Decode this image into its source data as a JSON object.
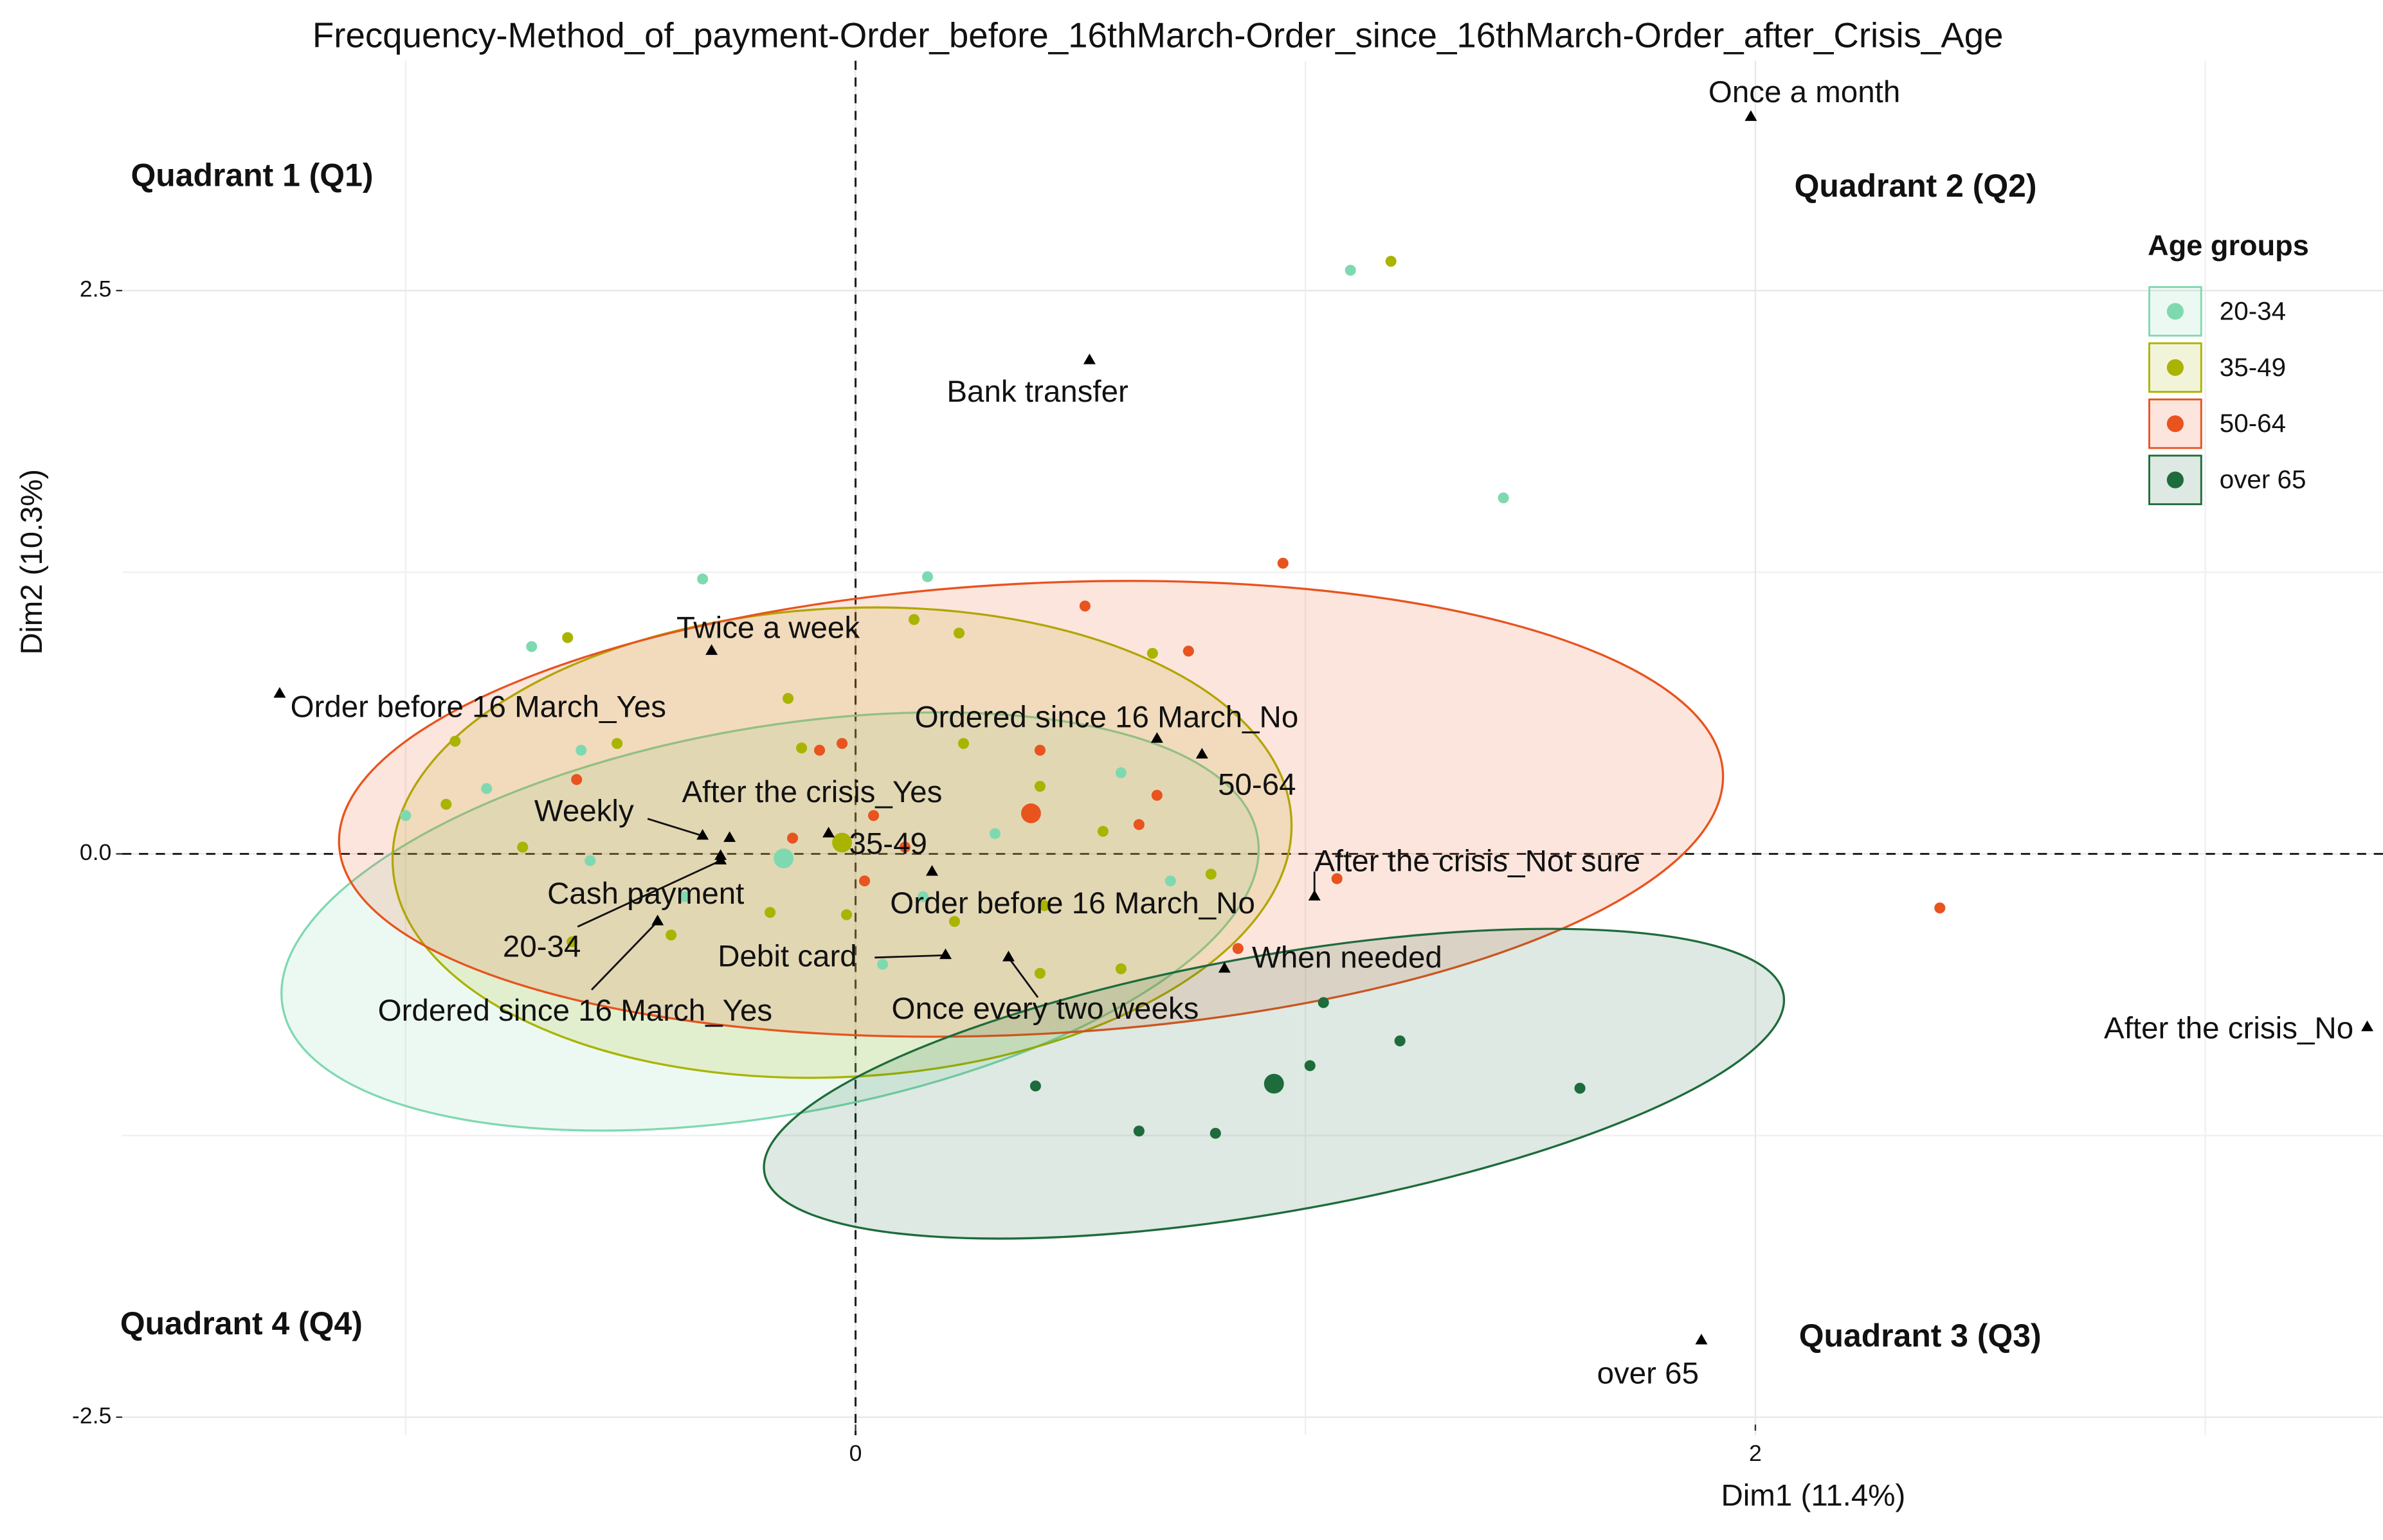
{
  "chart_data": {
    "type": "scatter",
    "title": "Frecquency-Method_of_payment-Order_before_16thMarch-Order_since_16thMarch-Order_after_Crisis_Age",
    "x_label": "Dim1 (11.4%)",
    "y_label": "Dim2 (10.3%)",
    "xlim": [
      -1.63,
      3.395
    ],
    "ylim": [
      -2.58,
      3.52
    ],
    "xticks": [
      0,
      2
    ],
    "yticks": [
      -2.5,
      {
        "value": 0,
        "label": "0.0"
      },
      2.5
    ],
    "grid": true,
    "legend": {
      "title": "Age groups",
      "position": "right"
    },
    "annotations": [
      "Quadrant 1 (Q1)",
      "Quadrant 2 (Q2)",
      "Quadrant 3 (Q3)",
      "Quadrant 4 (Q4)"
    ],
    "annotation_color": "#1a8fa6",
    "series": [
      {
        "name": "20-34",
        "color": "#7fd9b0",
        "x": [
          1.1,
          1.44,
          -0.34,
          0.16,
          -0.61,
          -0.82,
          -1.0,
          -0.59,
          0.06,
          0.7,
          0.31,
          0.59,
          0.15,
          -0.38,
          -0.72
        ],
        "y": [
          2.59,
          1.58,
          1.22,
          1.23,
          0.46,
          0.29,
          0.17,
          -0.03,
          -0.49,
          -0.12,
          0.09,
          0.36,
          -0.19,
          -0.19,
          0.92
        ],
        "centroid": {
          "x": -0.16,
          "y": -0.02
        },
        "ellipse": {
          "cx": -0.19,
          "cy": -0.3,
          "rx": 1.1,
          "ry": 0.86,
          "angle": -10
        }
      },
      {
        "name": "35-49",
        "color": "#a9b400",
        "x": [
          1.19,
          -0.64,
          0.13,
          0.23,
          0.66,
          -0.15,
          -0.89,
          -0.53,
          -0.12,
          0.24,
          -0.91,
          -0.74,
          0.41,
          0.55,
          0.79,
          0.42,
          -0.19,
          -0.02,
          0.41,
          0.59,
          0.22,
          -0.63,
          -0.41
        ],
        "y": [
          2.63,
          0.96,
          1.04,
          0.98,
          0.89,
          0.69,
          0.5,
          0.49,
          0.47,
          0.49,
          0.22,
          0.03,
          0.3,
          0.1,
          -0.09,
          -0.23,
          -0.26,
          -0.27,
          -0.53,
          -0.51,
          -0.3,
          -0.39,
          -0.36
        ],
        "centroid": {
          "x": -0.03,
          "y": 0.05
        },
        "ellipse": {
          "cx": -0.03,
          "cy": 0.05,
          "rx": 1.0,
          "ry": 1.04,
          "angle": -3
        }
      },
      {
        "name": "50-64",
        "color": "#e8531e",
        "x": [
          0.95,
          0.51,
          0.74,
          -0.08,
          -0.03,
          0.41,
          0.67,
          -0.62,
          -0.14,
          0.04,
          0.63,
          0.02,
          1.07,
          2.41,
          0.85,
          0.11
        ],
        "y": [
          1.29,
          1.1,
          0.9,
          0.46,
          0.49,
          0.46,
          0.26,
          0.33,
          0.07,
          0.17,
          0.13,
          -0.12,
          -0.11,
          -0.24,
          -0.42,
          0.03
        ],
        "centroid": {
          "x": 0.39,
          "y": 0.18
        },
        "ellipse": {
          "cx": 0.39,
          "cy": 0.2,
          "rx": 1.54,
          "ry": 1.0,
          "angle": -3
        }
      },
      {
        "name": "over 65",
        "color": "#1e6b3b",
        "x": [
          1.04,
          1.21,
          1.01,
          0.4,
          1.61,
          0.63,
          0.8
        ],
        "y": [
          -0.66,
          -0.83,
          -0.94,
          -1.03,
          -1.04,
          -1.23,
          -1.24
        ],
        "centroid": {
          "x": 0.93,
          "y": -1.02
        },
        "ellipse": {
          "cx": 0.93,
          "cy": -1.02,
          "rx": 1.15,
          "ry": 0.57,
          "angle": -10
        }
      }
    ],
    "categories_points": {
      "labels": [
        "Once a month",
        "Bank transfer",
        "Twice a week",
        "Order before 16 March_Yes",
        "Ordered since 16 March_No",
        "50-64",
        "Weekly",
        "After the crisis_Yes",
        "35-49",
        "20-34",
        "Cash payment",
        "Ordered since 16 March_Yes",
        "Order before 16 March_No",
        "Debit card",
        "Once every two weeks",
        "When needed",
        "After the crisis_Not sure",
        "After the crisis_No",
        "over 65"
      ],
      "x": [
        1.99,
        0.52,
        -0.32,
        -1.28,
        0.67,
        0.77,
        -0.34,
        -0.28,
        -0.06,
        -0.3,
        -0.3,
        -0.44,
        0.17,
        0.2,
        0.34,
        0.82,
        1.02,
        3.36,
        1.88
      ],
      "y": [
        3.27,
        2.19,
        0.9,
        0.71,
        0.51,
        0.44,
        0.08,
        0.07,
        0.09,
        -0.03,
        -0.01,
        -0.3,
        -0.08,
        -0.45,
        -0.46,
        -0.51,
        -0.19,
        -0.77,
        -2.16
      ]
    }
  }
}
